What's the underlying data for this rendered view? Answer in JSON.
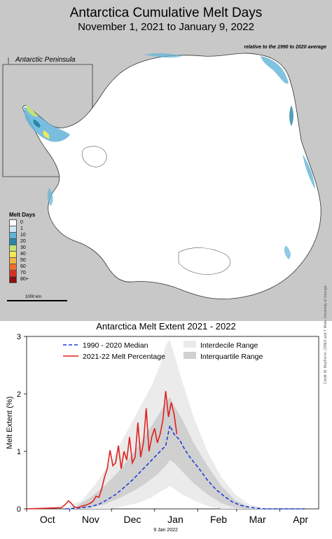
{
  "map": {
    "title": "Antarctica Cumulative Melt Days",
    "subtitle": "November 1, 2021 to January 9, 2022",
    "note": "relative to the 1990 to 2020 average",
    "inset_label": "Antarctic Peninsula",
    "legend_title": "Melt Days",
    "legend": [
      {
        "label": "0",
        "color": "#ffffff"
      },
      {
        "label": "1",
        "color": "#cfe9f5"
      },
      {
        "label": "10",
        "color": "#62b3d8"
      },
      {
        "label": "20",
        "color": "#2b86a8"
      },
      {
        "label": "30",
        "color": "#c2e37a"
      },
      {
        "label": "40",
        "color": "#f2e85a"
      },
      {
        "label": "50",
        "color": "#f6b343"
      },
      {
        "label": "60",
        "color": "#ee6f2e"
      },
      {
        "label": "70",
        "color": "#d92f1f"
      },
      {
        "label": "80+",
        "color": "#8f0d0d"
      }
    ],
    "scale_label": "1000 km"
  },
  "chart_data": {
    "type": "line",
    "title": "Antarctica Melt Extent 2021 - 2022",
    "ylabel": "Melt Extent (%)",
    "xlabel": "",
    "ylim": [
      0,
      3
    ],
    "yticks": [
      "0",
      "1",
      "2",
      "3"
    ],
    "xticks": [
      "Oct",
      "Nov",
      "Dec",
      "Jan",
      "Feb",
      "Mar",
      "Apr"
    ],
    "annotation": "9 Jan 2022",
    "credit": "Credit: M. MacFerrin, CIRES and T. Mote, University of Georgia",
    "legend": [
      {
        "label": "1990 - 2020 Median",
        "color": "#1f3fd6",
        "style": "dashed"
      },
      {
        "label": "2021-22 Melt Percentage",
        "color": "#e01f1f",
        "style": "solid"
      },
      {
        "label": "Interdecile Range",
        "color": "#ebebeb",
        "style": "band"
      },
      {
        "label": "Interquartile Range",
        "color": "#d0d0d0",
        "style": "band"
      }
    ],
    "series": [
      {
        "name": "1990 - 2020 Median",
        "color": "#1f3fd6",
        "x": [
          28,
          34,
          40,
          46,
          52,
          58,
          64,
          70,
          76,
          82,
          88,
          94,
          100,
          103,
          106,
          110,
          114,
          118,
          124,
          130,
          136,
          142,
          148,
          154,
          160,
          166,
          172,
          180,
          200
        ],
        "y": [
          0,
          0.01,
          0.02,
          0.04,
          0.08,
          0.16,
          0.25,
          0.37,
          0.5,
          0.65,
          0.8,
          0.95,
          1.1,
          1.45,
          1.3,
          1.2,
          1.02,
          0.88,
          0.7,
          0.5,
          0.34,
          0.22,
          0.12,
          0.06,
          0.03,
          0.01,
          0,
          0,
          0
        ]
      },
      {
        "name": "2021-22 Melt Percentage",
        "color": "#e01f1f",
        "x": [
          0,
          25,
          28,
          30,
          32,
          34,
          36,
          38,
          40,
          42,
          44,
          46,
          48,
          50,
          52,
          54,
          56,
          58,
          60,
          62,
          64,
          66,
          68,
          70,
          72,
          74,
          76,
          78,
          80,
          82,
          84,
          86,
          88,
          90,
          92,
          94,
          96,
          98,
          100,
          102,
          104,
          106,
          108
        ],
        "y": [
          0,
          0.02,
          0.08,
          0.14,
          0.1,
          0.04,
          0.02,
          0.03,
          0.05,
          0.06,
          0.08,
          0.1,
          0.14,
          0.22,
          0.2,
          0.35,
          0.55,
          0.7,
          1.02,
          0.75,
          0.8,
          1.1,
          0.7,
          1.0,
          0.85,
          1.25,
          0.8,
          0.9,
          1.5,
          0.9,
          1.15,
          1.75,
          1.0,
          1.25,
          1.4,
          1.15,
          1.3,
          1.55,
          2.05,
          1.6,
          1.85,
          1.65,
          1.3
        ]
      }
    ],
    "band_interdecile": {
      "x": [
        30,
        40,
        50,
        60,
        70,
        80,
        90,
        96,
        100,
        103,
        106,
        112,
        120,
        130,
        140,
        150,
        160,
        172
      ],
      "low": [
        0,
        0,
        0,
        0,
        0.05,
        0.1,
        0.2,
        0.3,
        0.35,
        0.4,
        0.35,
        0.25,
        0.15,
        0.05,
        0,
        0,
        0,
        0
      ],
      "high": [
        0.05,
        0.15,
        0.45,
        0.8,
        1.25,
        1.7,
        2.15,
        2.5,
        2.85,
        2.95,
        2.7,
        2.2,
        1.6,
        1.0,
        0.55,
        0.25,
        0.08,
        0
      ]
    },
    "band_interquartile": {
      "x": [
        36,
        46,
        56,
        66,
        76,
        86,
        94,
        100,
        103,
        106,
        112,
        120,
        130,
        140,
        150,
        160
      ],
      "low": [
        0,
        0.02,
        0.08,
        0.18,
        0.3,
        0.45,
        0.6,
        0.75,
        0.85,
        0.8,
        0.65,
        0.45,
        0.25,
        0.1,
        0.02,
        0
      ],
      "high": [
        0.05,
        0.2,
        0.4,
        0.65,
        0.95,
        1.3,
        1.6,
        1.85,
        1.95,
        1.8,
        1.55,
        1.15,
        0.75,
        0.4,
        0.15,
        0.03
      ]
    }
  }
}
